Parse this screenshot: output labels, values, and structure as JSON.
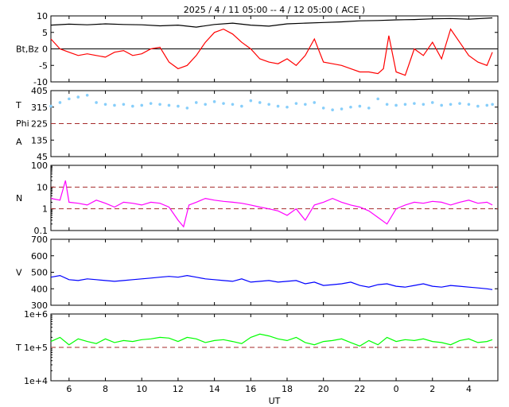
{
  "chart_data": {
    "type": "line",
    "title": "2025  /  4 / 11   05:00 -- 4 / 12   05:00 ( ACE )",
    "xlabel": "UT",
    "x_range_hours": [
      5,
      29.6
    ],
    "x_ticks": [
      "6",
      "8",
      "10",
      "12",
      "14",
      "16",
      "18",
      "20",
      "22",
      "0",
      "2",
      "4"
    ],
    "panels": [
      {
        "id": "bt-bz",
        "ylabels": [
          "Bt,Bz"
        ],
        "ylim": [
          -10,
          10
        ],
        "yticks": [
          "10",
          "5",
          "0",
          "-5",
          "-10"
        ],
        "zero_line": 0,
        "series": [
          {
            "name": "Bt",
            "color": "#000000",
            "x": [
              5,
              6,
              7,
              8,
              9,
              10,
              11,
              12,
              13,
              14,
              15,
              16,
              17,
              18,
              19,
              20,
              21,
              22,
              23,
              24,
              25,
              26,
              27,
              28,
              29.3
            ],
            "y": [
              7.2,
              7.5,
              7.3,
              7.6,
              7.4,
              7.3,
              7.0,
              7.2,
              6.6,
              7.4,
              7.8,
              7.2,
              6.9,
              7.6,
              7.8,
              8.0,
              8.2,
              8.5,
              8.6,
              8.8,
              8.9,
              9.1,
              9.2,
              9.0,
              9.4
            ]
          },
          {
            "name": "Bz",
            "color": "#ff0000",
            "x": [
              5,
              5.5,
              6,
              6.5,
              7,
              7.5,
              8,
              8.5,
              9,
              9.5,
              10,
              10.5,
              11,
              11.5,
              12,
              12.5,
              13,
              13.5,
              14,
              14.5,
              15,
              15.5,
              16,
              16.5,
              17,
              17.5,
              18,
              18.5,
              19,
              19.5,
              20,
              20.5,
              21,
              21.5,
              22,
              22.5,
              23,
              23.3,
              23.6,
              24,
              24.5,
              25,
              25.5,
              26,
              26.5,
              27,
              27.5,
              28,
              28.5,
              29,
              29.3
            ],
            "y": [
              3,
              0,
              -1,
              -2,
              -1.5,
              -2,
              -2.5,
              -1,
              -0.5,
              -2,
              -1.5,
              0,
              0.5,
              -4,
              -6,
              -5,
              -2,
              2,
              5,
              6,
              4.5,
              2,
              0,
              -3,
              -4,
              -4.5,
              -3,
              -5,
              -2,
              3,
              -4,
              -4.5,
              -5,
              -6,
              -7,
              -7,
              -7.5,
              -6,
              4,
              -7,
              -8,
              0,
              -2,
              2,
              -3,
              6,
              2,
              -2,
              -4,
              -5,
              -1
            ]
          }
        ]
      },
      {
        "id": "temperature-phi",
        "ylabels": [
          "T",
          "Phi",
          "A"
        ],
        "ylim": [
          45,
          405
        ],
        "yticks": [
          "405",
          "315",
          "225",
          "135",
          "45"
        ],
        "ref_lines": [
          225
        ],
        "series": [
          {
            "name": "Phi",
            "color": "#87cefa",
            "style": "dots",
            "x": [
              5,
              5.5,
              6,
              6.5,
              7,
              7.5,
              8,
              8.5,
              9,
              9.5,
              10,
              10.5,
              11,
              11.5,
              12,
              12.5,
              13,
              13.5,
              14,
              14.5,
              15,
              15.5,
              16,
              16.5,
              17,
              17.5,
              18,
              18.5,
              19,
              19.5,
              20,
              20.5,
              21,
              21.5,
              22,
              22.5,
              23,
              23.5,
              24,
              24.5,
              25,
              25.5,
              26,
              26.5,
              27,
              27.5,
              28,
              28.5,
              29,
              29.3
            ],
            "y": [
              320,
              340,
              360,
              370,
              380,
              340,
              330,
              325,
              330,
              320,
              325,
              335,
              330,
              325,
              320,
              310,
              340,
              330,
              345,
              335,
              330,
              320,
              350,
              340,
              330,
              320,
              315,
              335,
              330,
              340,
              310,
              300,
              305,
              315,
              320,
              310,
              360,
              330,
              325,
              330,
              335,
              330,
              340,
              325,
              330,
              335,
              330,
              320,
              325,
              330
            ]
          }
        ]
      },
      {
        "id": "density",
        "ylabels": [
          "N"
        ],
        "scale": "log",
        "ylim": [
          0.1,
          100
        ],
        "yticks": [
          "100",
          "10",
          "1",
          "0.1"
        ],
        "ref_lines": [
          10,
          1
        ],
        "series": [
          {
            "name": "N",
            "color": "#ff00ff",
            "x": [
              5,
              5.5,
              5.8,
              6,
              6.5,
              7,
              7.5,
              8,
              8.5,
              9,
              9.5,
              10,
              10.5,
              11,
              11.5,
              12,
              12.3,
              12.6,
              13,
              13.5,
              14,
              14.5,
              15,
              15.5,
              16,
              16.5,
              17,
              17.5,
              18,
              18.5,
              19,
              19.5,
              20,
              20.5,
              21,
              21.5,
              22,
              22.5,
              23,
              23.5,
              24,
              24.5,
              25,
              25.5,
              26,
              26.5,
              27,
              27.5,
              28,
              28.5,
              29,
              29.3
            ],
            "y": [
              3,
              2.5,
              20,
              2,
              1.8,
              1.5,
              2.5,
              1.8,
              1.2,
              2,
              1.8,
              1.5,
              2,
              1.8,
              1.2,
              0.3,
              0.15,
              1.5,
              2,
              3,
              2.5,
              2.2,
              2,
              1.8,
              1.5,
              1.2,
              1,
              0.8,
              0.5,
              1,
              0.3,
              1.5,
              2,
              3,
              2,
              1.5,
              1.2,
              0.8,
              0.4,
              0.2,
              1,
              1.5,
              2,
              1.8,
              2.2,
              2,
              1.5,
              2,
              2.5,
              1.8,
              2,
              1.5
            ]
          }
        ]
      },
      {
        "id": "speed",
        "ylabels": [
          "V"
        ],
        "ylim": [
          300,
          700
        ],
        "yticks": [
          "700",
          "600",
          "500",
          "400",
          "300"
        ],
        "series": [
          {
            "name": "V",
            "color": "#0000ff",
            "x": [
              5,
              5.5,
              6,
              6.5,
              7,
              7.5,
              8,
              8.5,
              9,
              9.5,
              10,
              10.5,
              11,
              11.5,
              12,
              12.5,
              13,
              13.5,
              14,
              14.5,
              15,
              15.5,
              16,
              16.5,
              17,
              17.5,
              18,
              18.5,
              19,
              19.5,
              20,
              20.5,
              21,
              21.5,
              22,
              22.5,
              23,
              23.5,
              24,
              24.5,
              25,
              25.5,
              26,
              26.5,
              27,
              27.5,
              28,
              28.5,
              29,
              29.3
            ],
            "y": [
              470,
              480,
              455,
              450,
              460,
              455,
              450,
              445,
              450,
              455,
              460,
              465,
              470,
              475,
              470,
              480,
              470,
              460,
              455,
              450,
              445,
              460,
              440,
              445,
              450,
              440,
              445,
              450,
              430,
              440,
              420,
              425,
              430,
              440,
              420,
              410,
              425,
              430,
              415,
              410,
              420,
              430,
              415,
              410,
              420,
              415,
              410,
              405,
              400,
              395
            ]
          }
        ]
      },
      {
        "id": "temperature",
        "ylabels": [
          "T"
        ],
        "scale": "log",
        "ylim": [
          10000,
          1000000
        ],
        "yticks": [
          "1e+6",
          "1e+5",
          "1e+4"
        ],
        "ref_lines": [
          100000
        ],
        "series": [
          {
            "name": "T",
            "color": "#00ff00",
            "x": [
              5,
              5.5,
              6,
              6.5,
              7,
              7.5,
              8,
              8.5,
              9,
              9.5,
              10,
              10.5,
              11,
              11.5,
              12,
              12.5,
              13,
              13.5,
              14,
              14.5,
              15,
              15.5,
              16,
              16.5,
              17,
              17.5,
              18,
              18.5,
              19,
              19.5,
              20,
              20.5,
              21,
              21.5,
              22,
              22.5,
              23,
              23.5,
              24,
              24.5,
              25,
              25.5,
              26,
              26.5,
              27,
              27.5,
              28,
              28.5,
              29,
              29.3
            ],
            "y": [
              150000,
              200000,
              120000,
              180000,
              150000,
              130000,
              180000,
              140000,
              160000,
              150000,
              170000,
              180000,
              200000,
              190000,
              150000,
              200000,
              180000,
              140000,
              160000,
              170000,
              150000,
              130000,
              200000,
              250000,
              220000,
              180000,
              160000,
              200000,
              140000,
              120000,
              150000,
              160000,
              180000,
              140000,
              110000,
              160000,
              120000,
              200000,
              150000,
              170000,
              160000,
              180000,
              150000,
              140000,
              120000,
              160000,
              180000,
              140000,
              150000,
              170000
            ]
          }
        ]
      }
    ]
  }
}
